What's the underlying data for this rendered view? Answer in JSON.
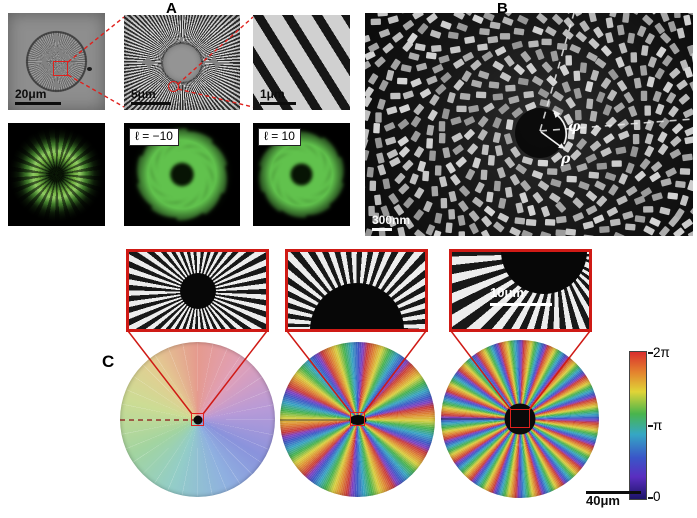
{
  "figure": {
    "panel_a_label": "A",
    "panel_b_label": "B",
    "panel_c_label": "C"
  },
  "panel_a": {
    "scalebars": {
      "overview": "20μm",
      "zoom": "5μm",
      "detail": "1μm"
    },
    "vortex_labels": {
      "negative": "ℓ = −10",
      "positive": "ℓ = 10"
    }
  },
  "panel_b": {
    "scalebar": "300nm",
    "axes": {
      "azimuthal": "φ",
      "radial": "ρ"
    }
  },
  "panel_c": {
    "inset_scalebar": "10μm",
    "disk_scalebar": "40μm",
    "colorbar": {
      "max": "2π",
      "mid": "π",
      "min": "0"
    }
  }
}
